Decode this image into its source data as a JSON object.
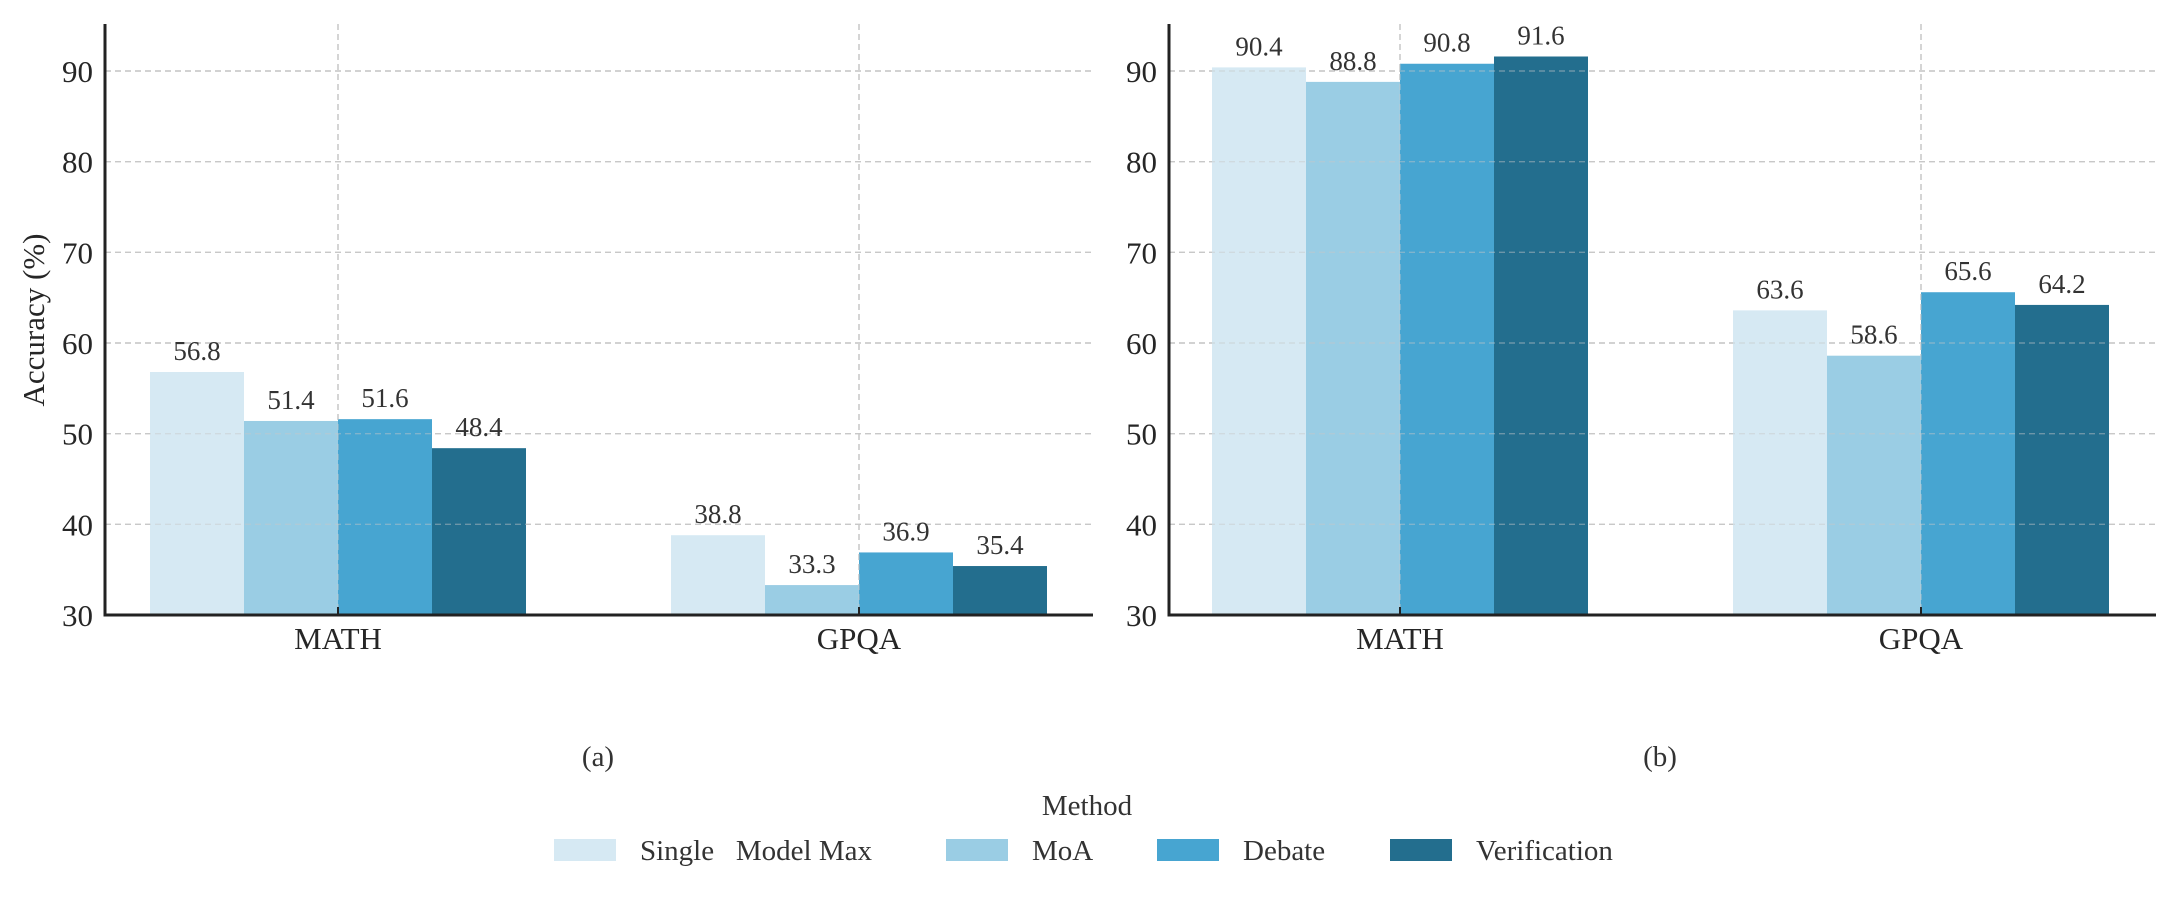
{
  "chart_data": {
    "type": "bar",
    "legend": {
      "title": "Method",
      "placement": "bottom-center",
      "entries": [
        "Single   Model Max",
        "MoA",
        "Debate",
        "Verification"
      ]
    },
    "series_colors": [
      "#d6e9f3",
      "#9acde4",
      "#47a5d1",
      "#236e8e"
    ],
    "panels": [
      {
        "caption": "(a)",
        "ylabel": "Accuracy (%)",
        "ylim": [
          30,
          95
        ],
        "yticks": [
          30,
          40,
          50,
          60,
          70,
          80,
          90
        ],
        "grid": true,
        "categories": [
          "MATH",
          "GPQA"
        ],
        "series": [
          {
            "name": "Single Model Max",
            "values": [
              56.8,
              38.8
            ]
          },
          {
            "name": "MoA",
            "values": [
              51.4,
              33.3
            ]
          },
          {
            "name": "Debate",
            "values": [
              51.6,
              36.9
            ]
          },
          {
            "name": "Verification",
            "values": [
              48.4,
              35.4
            ]
          }
        ]
      },
      {
        "caption": "(b)",
        "ylabel": "",
        "ylim": [
          30,
          95
        ],
        "yticks": [
          30,
          40,
          50,
          60,
          70,
          80,
          90
        ],
        "grid": true,
        "categories": [
          "MATH",
          "GPQA"
        ],
        "series": [
          {
            "name": "Single Model Max",
            "values": [
              90.4,
              63.6
            ]
          },
          {
            "name": "MoA",
            "values": [
              88.8,
              58.6
            ]
          },
          {
            "name": "Debate",
            "values": [
              90.8,
              65.6
            ]
          },
          {
            "name": "Verification",
            "values": [
              91.6,
              64.2
            ]
          }
        ]
      }
    ]
  }
}
